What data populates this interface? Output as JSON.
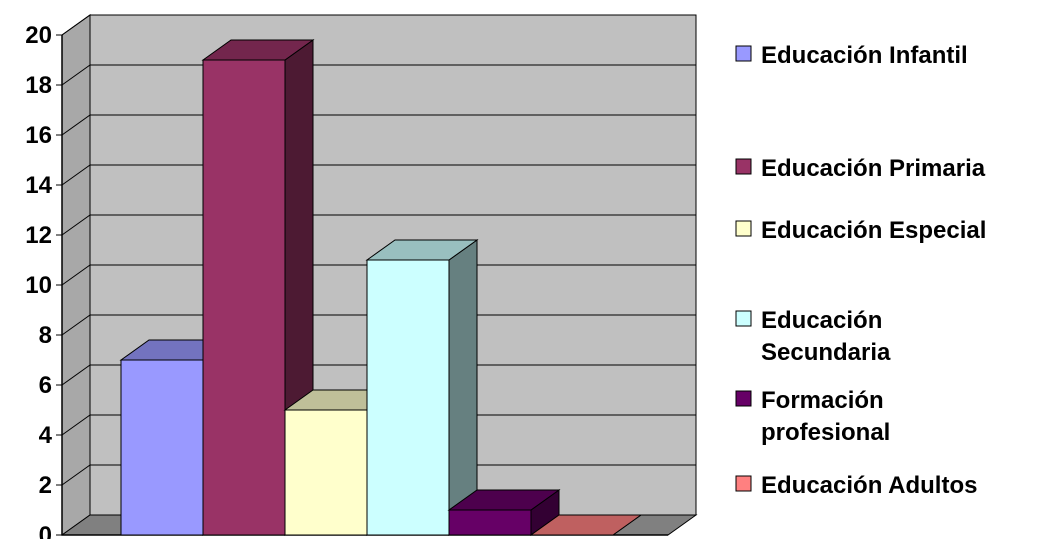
{
  "chart_data": {
    "type": "bar",
    "title": "",
    "xlabel": "",
    "ylabel": "",
    "ylim": [
      0,
      20
    ],
    "yticks": [
      "0",
      "2",
      "4",
      "6",
      "8",
      "10",
      "12",
      "14",
      "16",
      "18",
      "20"
    ],
    "grid": true,
    "legend_position": "right",
    "series": [
      {
        "name": "Educación Infantil",
        "legend_lines": [
          "Educación Infantil"
        ],
        "value": 7,
        "color": "#9999ff"
      },
      {
        "name": "Educación Primaria",
        "legend_lines": [
          "Educación Primaria"
        ],
        "value": 19,
        "color": "#993366"
      },
      {
        "name": "Educación Especial",
        "legend_lines": [
          "Educación Especial"
        ],
        "value": 5,
        "color": "#ffffcc"
      },
      {
        "name": "Educación Secundaria",
        "legend_lines": [
          "Educación",
          "Secundaria"
        ],
        "value": 11,
        "color": "#ccffff"
      },
      {
        "name": "Formación profesional",
        "legend_lines": [
          "Formación",
          "profesional"
        ],
        "value": 1,
        "color": "#660066"
      },
      {
        "name": "Educación Adultos",
        "legend_lines": [
          "Educación Adultos"
        ],
        "value": 0,
        "color": "#ff8080"
      }
    ]
  }
}
